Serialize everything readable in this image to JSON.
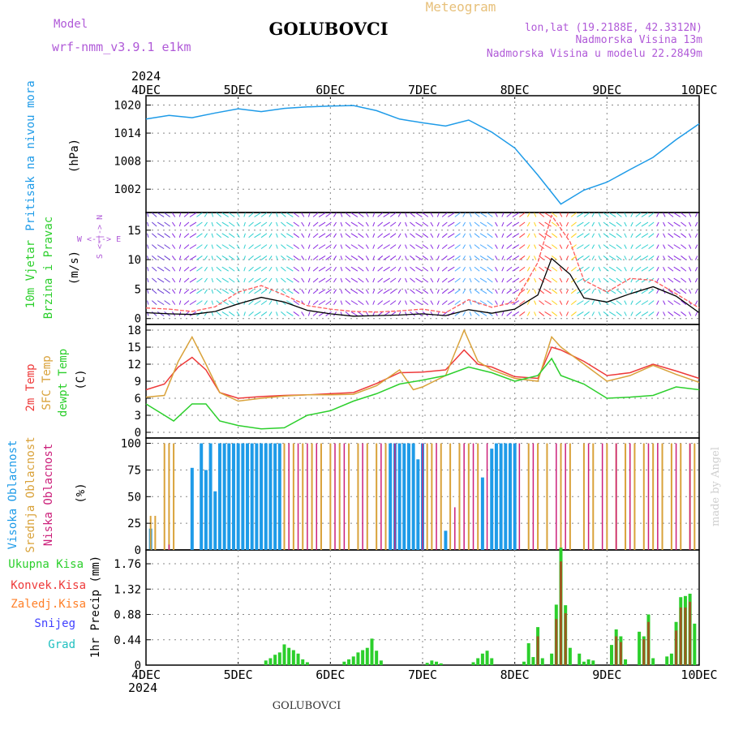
{
  "header": {
    "model_label": "Model",
    "model_value": "wrf-nmm_v3.9.1 e1km",
    "station": "GOLUBOVCI",
    "subtitle": "Meteogram",
    "location": "lon,lat (19.2188E, 42.3312N)",
    "elevation": "Nadmorska Visina 13m",
    "model_elevation": "Nadmorska Visina u modelu 22.2849m"
  },
  "footer": {
    "station": "GOLUBOVCI",
    "watermark": "made by Angel"
  },
  "time_axis": {
    "year": "2024",
    "ticks": [
      "4DEC",
      "5DEC",
      "6DEC",
      "7DEC",
      "8DEC",
      "9DEC",
      "10DEC"
    ]
  },
  "colors": {
    "pressure": "#1e9be8",
    "wind_speed": "#000000",
    "wind_gust": "#ff5a5a",
    "temp_2m": "#ee3a3a",
    "temp_sfc": "#d9a23a",
    "dewpoint": "#2ccf2c",
    "cloud_high": "#1e9be8",
    "cloud_mid": "#d9a23a",
    "cloud_low": "#cc1f7a",
    "precip_total": "#2ccf2c",
    "precip_conv": "#ee3a3a",
    "precip_snow": "#4040ff",
    "precip_frz": "#ff7f27",
    "precip_grad": "#20c0c0"
  },
  "chart_data": [
    {
      "type": "line",
      "id": "pressure",
      "title": "Pritisak na nivou mora",
      "ylabel": "(hPa)",
      "ylim": [
        997,
        1022
      ],
      "yticks": [
        "1020",
        "1014",
        "1008",
        "1002"
      ],
      "grid": true,
      "x_unit": "days since 4DEC 00UTC",
      "series": [
        {
          "name": "Pritisak na nivou mora",
          "x": [
            0,
            0.25,
            0.5,
            0.75,
            1.0,
            1.25,
            1.5,
            1.75,
            2.0,
            2.25,
            2.5,
            2.75,
            3.0,
            3.25,
            3.5,
            3.75,
            4.0,
            4.25,
            4.5,
            4.75,
            5.0,
            5.25,
            5.5,
            5.75,
            6.0
          ],
          "y": [
            1017.0,
            1017.8,
            1017.3,
            1018.3,
            1019.2,
            1018.6,
            1019.3,
            1019.6,
            1019.8,
            1019.9,
            1018.8,
            1017.0,
            1016.2,
            1015.5,
            1016.8,
            1014.2,
            1010.8,
            1005.0,
            998.8,
            1001.8,
            1003.5,
            1006.2,
            1008.8,
            1012.6,
            1016.0
          ]
        }
      ]
    },
    {
      "type": "line",
      "id": "wind",
      "title": "10m Vjetar",
      "subtitle": "Brzina i Pravac",
      "ylabel": "(m/s)",
      "legend": [
        "W <-|-> E",
        "S <-|-> N"
      ],
      "ylim": [
        -1,
        18
      ],
      "yticks": [
        "15",
        "10",
        "5",
        "0"
      ],
      "grid": true,
      "x_unit": "days since 4DEC 00UTC",
      "series": [
        {
          "name": "speed",
          "x": [
            0,
            0.25,
            0.5,
            0.75,
            1.0,
            1.25,
            1.5,
            1.75,
            2.0,
            2.25,
            2.5,
            2.75,
            3.0,
            3.25,
            3.5,
            3.75,
            4.0,
            4.25,
            4.4,
            4.6,
            4.75,
            5.0,
            5.25,
            5.5,
            5.75,
            6.0
          ],
          "y": [
            1.0,
            0.8,
            0.7,
            1.2,
            2.5,
            3.6,
            2.8,
            1.4,
            0.8,
            0.4,
            0.5,
            0.6,
            0.8,
            0.5,
            1.5,
            0.9,
            1.6,
            4.0,
            10.2,
            7.5,
            3.5,
            2.8,
            4.2,
            5.4,
            3.8,
            1.0
          ]
        },
        {
          "name": "gust",
          "x": [
            0,
            0.25,
            0.5,
            0.75,
            1.0,
            1.25,
            1.5,
            1.75,
            2.0,
            2.25,
            2.5,
            2.75,
            3.0,
            3.25,
            3.5,
            3.75,
            4.0,
            4.25,
            4.4,
            4.6,
            4.75,
            5.0,
            5.25,
            5.5,
            5.75,
            6.0
          ],
          "y": [
            1.8,
            1.6,
            1.2,
            2.0,
            4.5,
            5.6,
            4.0,
            2.2,
            1.6,
            1.2,
            1.1,
            1.3,
            1.6,
            1.0,
            3.2,
            1.9,
            2.8,
            9.5,
            17.5,
            13.0,
            6.5,
            4.5,
            6.8,
            6.5,
            4.2,
            1.8
          ]
        }
      ]
    },
    {
      "type": "line",
      "id": "temperature",
      "title": "2m Temp",
      "ylabel": "(C)",
      "ylim": [
        -1,
        19
      ],
      "yticks": [
        "18",
        "15",
        "12",
        "9",
        "6",
        "3",
        "0"
      ],
      "grid": true,
      "x_unit": "days since 4DEC 00UTC",
      "series": [
        {
          "name": "2m Temp",
          "x": [
            0,
            0.2,
            0.35,
            0.5,
            0.65,
            0.8,
            1.0,
            1.25,
            1.5,
            1.75,
            2.0,
            2.25,
            2.5,
            2.75,
            3.0,
            3.25,
            3.45,
            3.6,
            3.75,
            4.0,
            4.25,
            4.4,
            4.5,
            4.75,
            5.0,
            5.25,
            5.5,
            5.75,
            6.0
          ],
          "y": [
            7.5,
            8.5,
            11.5,
            13.2,
            11.0,
            7.0,
            6.0,
            6.3,
            6.5,
            6.6,
            6.8,
            7.0,
            8.6,
            10.5,
            10.6,
            11.0,
            14.5,
            12.0,
            11.5,
            9.8,
            9.5,
            15.0,
            14.5,
            12.5,
            10.0,
            10.5,
            12.0,
            10.8,
            9.5
          ]
        },
        {
          "name": "SFC Temp",
          "x": [
            0,
            0.2,
            0.35,
            0.5,
            0.65,
            0.8,
            1.0,
            1.25,
            1.5,
            1.75,
            2.0,
            2.25,
            2.5,
            2.75,
            2.9,
            3.0,
            3.25,
            3.45,
            3.6,
            3.75,
            4.0,
            4.25,
            4.4,
            4.5,
            4.75,
            5.0,
            5.25,
            5.5,
            5.75,
            6.0
          ],
          "y": [
            6.2,
            6.5,
            12.5,
            16.8,
            12.0,
            7.0,
            5.5,
            6.0,
            6.4,
            6.6,
            6.6,
            6.7,
            8.2,
            11.0,
            7.5,
            8.0,
            10.0,
            18.0,
            12.5,
            11.0,
            9.5,
            9.0,
            16.8,
            15.0,
            12.0,
            9.0,
            10.0,
            11.8,
            10.2,
            8.8
          ]
        },
        {
          "name": "dewpt Temp",
          "x": [
            0,
            0.15,
            0.3,
            0.5,
            0.65,
            0.8,
            1.0,
            1.25,
            1.5,
            1.75,
            2.0,
            2.25,
            2.5,
            2.75,
            3.0,
            3.25,
            3.5,
            3.75,
            4.0,
            4.25,
            4.4,
            4.5,
            4.75,
            5.0,
            5.25,
            5.5,
            5.75,
            6.0
          ],
          "y": [
            5.0,
            3.5,
            2.0,
            5.0,
            5.0,
            2.0,
            1.2,
            0.6,
            0.8,
            3.0,
            3.8,
            5.5,
            6.8,
            8.5,
            9.2,
            10.0,
            11.5,
            10.5,
            9.0,
            10.0,
            13.0,
            10.0,
            8.5,
            6.0,
            6.2,
            6.5,
            8.0,
            7.5
          ]
        }
      ]
    },
    {
      "type": "bar",
      "id": "clouds",
      "title": "Visoka Oblacnost",
      "ylabel": "(%)",
      "ylim": [
        0,
        105
      ],
      "yticks": [
        "100",
        "75",
        "50",
        "25",
        "0"
      ],
      "grid": true,
      "series_note": "hourly cloud fraction",
      "series": [
        {
          "name": "Visoka Oblacnost",
          "x": [
            0.05,
            0.5,
            0.6,
            0.65,
            0.7,
            0.75,
            0.8,
            0.85,
            0.9,
            0.95,
            1.0,
            1.05,
            1.1,
            1.15,
            1.2,
            1.25,
            1.3,
            1.35,
            1.4,
            1.45,
            2.65,
            2.7,
            2.75,
            2.8,
            2.85,
            2.9,
            2.95,
            3.0,
            3.25,
            3.65,
            3.75,
            3.8,
            3.85,
            3.9,
            3.95,
            4.0
          ],
          "y": [
            20,
            77,
            100,
            75,
            100,
            55,
            100,
            100,
            100,
            100,
            100,
            100,
            100,
            100,
            100,
            100,
            100,
            100,
            100,
            100,
            100,
            100,
            100,
            100,
            100,
            100,
            85,
            100,
            18,
            68,
            95,
            100,
            100,
            100,
            100,
            100
          ]
        },
        {
          "name": "Srednja Oblacnost",
          "x": [
            0.05,
            0.1,
            0.2,
            0.25,
            0.3,
            1.5,
            1.6,
            1.7,
            1.8,
            1.9,
            2.0,
            2.1,
            2.2,
            2.3,
            2.4,
            2.5,
            2.6,
            3.05,
            3.1,
            3.2,
            3.3,
            3.4,
            3.5,
            3.6,
            4.15,
            4.25,
            4.35,
            4.5,
            4.6,
            4.75,
            4.85,
            5.0,
            5.1,
            5.2,
            5.3,
            5.4,
            5.5,
            5.6,
            5.7,
            5.8,
            5.9,
            5.95
          ],
          "y": [
            32,
            32,
            100,
            100,
            100,
            100,
            100,
            100,
            100,
            100,
            100,
            100,
            100,
            100,
            100,
            100,
            100,
            100,
            100,
            100,
            100,
            100,
            100,
            100,
            100,
            100,
            100,
            100,
            100,
            100,
            100,
            100,
            100,
            100,
            100,
            100,
            100,
            100,
            100,
            100,
            100,
            100
          ]
        },
        {
          "name": "Niska Oblacnost",
          "x": [
            0.25,
            1.55,
            1.65,
            1.75,
            1.85,
            2.05,
            2.15,
            2.35,
            2.55,
            2.7,
            3.0,
            3.15,
            3.35,
            3.45,
            3.55,
            3.7,
            4.05,
            4.2,
            4.45,
            4.55,
            4.8,
            4.95,
            5.1,
            5.25,
            5.45,
            5.55,
            5.75,
            5.9
          ],
          "y": [
            5,
            100,
            100,
            100,
            100,
            100,
            100,
            100,
            100,
            100,
            100,
            100,
            40,
            100,
            100,
            100,
            100,
            100,
            100,
            100,
            100,
            100,
            100,
            100,
            100,
            100,
            100,
            100
          ]
        }
      ]
    },
    {
      "type": "bar",
      "id": "precip",
      "title": "Ukupna Kisa",
      "ylabel": "1hr Precip (mm)",
      "ylim": [
        0,
        2.0
      ],
      "yticks": [
        "1.76",
        "1.32",
        "0.88",
        "0.44",
        "0"
      ],
      "grid": true,
      "legend": [
        "Ukupna Kisa",
        "Konvek.Kisa",
        "Zaledj.Kisa",
        "Snijeg",
        "Grad"
      ],
      "series": [
        {
          "name": "Ukupna Kisa",
          "x": [
            1.3,
            1.35,
            1.4,
            1.45,
            1.5,
            1.55,
            1.6,
            1.65,
            1.7,
            1.75,
            2.15,
            2.2,
            2.25,
            2.3,
            2.35,
            2.4,
            2.45,
            2.5,
            2.55,
            3.05,
            3.1,
            3.15,
            3.2,
            3.55,
            3.6,
            3.65,
            3.7,
            3.75,
            4.1,
            4.15,
            4.2,
            4.25,
            4.3,
            4.4,
            4.45,
            4.5,
            4.55,
            4.6,
            4.7,
            4.75,
            4.8,
            4.85,
            5.05,
            5.1,
            5.15,
            5.2,
            5.35,
            5.4,
            5.45,
            5.5,
            5.65,
            5.7,
            5.75,
            5.8,
            5.85,
            5.9,
            5.95
          ],
          "y": [
            0.08,
            0.12,
            0.18,
            0.22,
            0.36,
            0.3,
            0.26,
            0.2,
            0.1,
            0.05,
            0.06,
            0.1,
            0.15,
            0.22,
            0.26,
            0.3,
            0.46,
            0.25,
            0.08,
            0.04,
            0.08,
            0.06,
            0.03,
            0.05,
            0.12,
            0.2,
            0.25,
            0.12,
            0.06,
            0.38,
            0.14,
            0.66,
            0.12,
            0.2,
            1.05,
            2.04,
            1.04,
            0.3,
            0.2,
            0.06,
            0.1,
            0.08,
            0.35,
            0.62,
            0.5,
            0.1,
            0.58,
            0.5,
            0.88,
            0.12,
            0.15,
            0.2,
            0.75,
            1.18,
            1.2,
            1.24,
            0.72
          ]
        },
        {
          "name": "Konvek.Kisa",
          "x": [
            4.25,
            4.45,
            4.5,
            4.55,
            5.1,
            5.15,
            5.4,
            5.45,
            5.75,
            5.8,
            5.85,
            5.9
          ],
          "y": [
            0.5,
            0.8,
            1.8,
            0.9,
            0.5,
            0.4,
            0.45,
            0.75,
            0.6,
            1.0,
            1.0,
            1.1
          ]
        }
      ]
    }
  ],
  "panel_labels": {
    "pressure": [
      "Pritisak na nivou mora",
      "(hPa)"
    ],
    "wind": [
      "10m Vjetar",
      "Brzina i Pravac",
      "(m/s)"
    ],
    "wind_legend": [
      "S <-|-> N",
      "W <-|-> E"
    ],
    "temperature": [
      "2m Temp",
      "SFC Temp",
      "dewpt Temp",
      "(C)"
    ],
    "clouds": [
      "Visoka Oblacnost",
      "Srednja Oblacnost",
      "Niska Oblacnost",
      "(%)"
    ],
    "precip_legend": [
      "Ukupna Kisa",
      "Konvek.Kisa",
      "Zaledj.Kisa",
      "Snijeg",
      "Grad"
    ],
    "precip_unit": "1hr Precip (mm)"
  }
}
